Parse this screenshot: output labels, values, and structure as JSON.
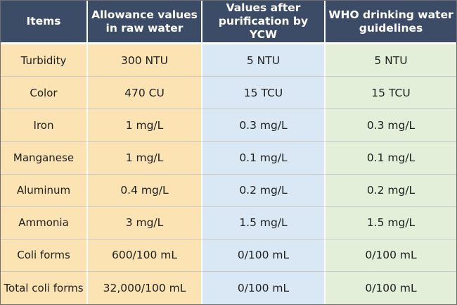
{
  "table": {
    "headers": {
      "items": "Items",
      "raw": "Allowance values in raw water",
      "ycw": "Values after purification by YCW",
      "who": "WHO drinking water guidelines"
    },
    "rows": [
      {
        "item": "Turbidity",
        "raw": "300 NTU",
        "ycw": "5 NTU",
        "who": "5 NTU"
      },
      {
        "item": "Color",
        "raw": "470 CU",
        "ycw": "15 TCU",
        "who": "15 TCU"
      },
      {
        "item": "Iron",
        "raw": "1 mg/L",
        "ycw": "0.3 mg/L",
        "who": "0.3 mg/L"
      },
      {
        "item": "Manganese",
        "raw": "1 mg/L",
        "ycw": "0.1 mg/L",
        "who": "0.1 mg/L"
      },
      {
        "item": "Aluminum",
        "raw": "0.4 mg/L",
        "ycw": "0.2 mg/L",
        "who": "0.2 mg/L"
      },
      {
        "item": "Ammonia",
        "raw": "3 mg/L",
        "ycw": "1.5 mg/L",
        "who": "1.5 mg/L"
      },
      {
        "item": "Coli forms",
        "raw": "600/100 mL",
        "ycw": "0/100 mL",
        "who": "0/100 mL"
      },
      {
        "item": "Total coli forms",
        "raw": "32,000/100 mL",
        "ycw": "0/100 mL",
        "who": "0/100 mL"
      }
    ]
  },
  "colors": {
    "header_bg": "#3c4b66",
    "items_col_bg": "#fbe3b3",
    "ycw_col_bg": "#dae8f6",
    "who_col_bg": "#e3efd8"
  }
}
